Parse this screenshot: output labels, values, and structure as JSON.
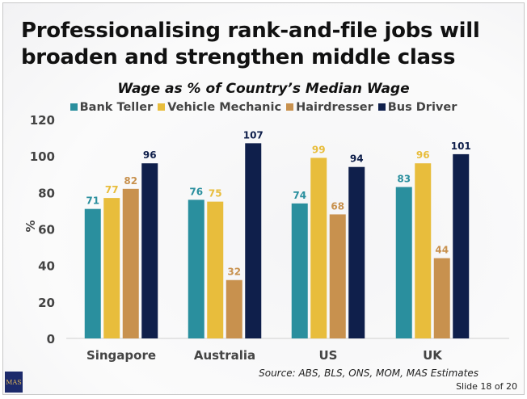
{
  "title": "Professionalising rank-and-file jobs will broaden and strengthen middle class",
  "chart_data": {
    "type": "bar",
    "title": "Wage as % of Country’s Median Wage",
    "xlabel": "",
    "ylabel": "%",
    "ylim": [
      0,
      120
    ],
    "yticks": [
      0,
      20,
      40,
      60,
      80,
      100,
      120
    ],
    "categories": [
      "Singapore",
      "Australia",
      "US",
      "UK"
    ],
    "legend_position": "top",
    "grid": false,
    "series": [
      {
        "name": "Bank Teller",
        "color": "#2a8f9e",
        "values": [
          71,
          76,
          74,
          83
        ]
      },
      {
        "name": "Vehicle Mechanic",
        "color": "#e8bd3c",
        "values": [
          77,
          75,
          99,
          96
        ]
      },
      {
        "name": "Hairdresser",
        "color": "#c8914e",
        "values": [
          82,
          32,
          68,
          44
        ]
      },
      {
        "name": "Bus Driver",
        "color": "#0f1f4b",
        "values": [
          96,
          107,
          94,
          101
        ]
      }
    ]
  },
  "source": "Source: ABS, BLS, ONS, MOM, MAS Estimates",
  "slide_number": "Slide 18 of 20",
  "logo_text": "MAS"
}
